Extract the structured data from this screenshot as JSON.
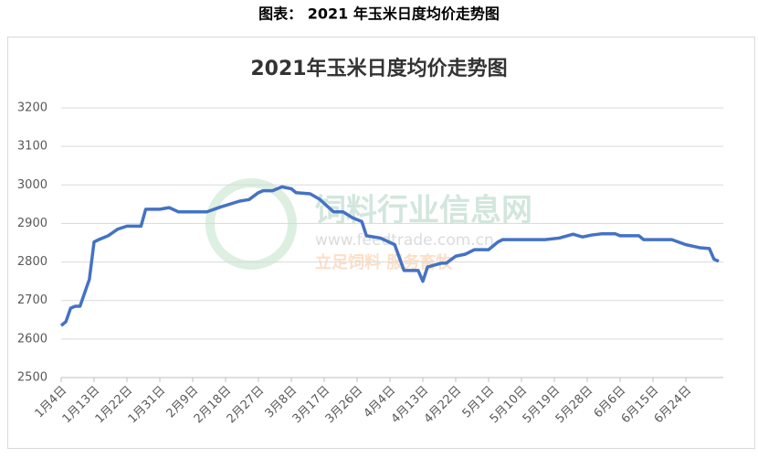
{
  "caption": "图表：  2021 年玉米日度均价走势图",
  "watermark": {
    "name": "饲料行业信息网",
    "url": "www.feedtrade.com.cn",
    "slogan": "立足饲料  服务畜牧"
  },
  "chart_data": {
    "type": "line",
    "title": "2021年玉米日度均价走势图",
    "x": [
      0,
      1,
      2,
      3,
      4,
      6,
      7,
      8,
      10,
      12,
      14,
      15,
      17,
      18,
      21,
      23,
      25,
      31,
      34,
      38,
      40,
      42,
      43,
      45,
      47,
      49,
      50,
      53,
      55,
      58,
      60,
      62,
      64,
      65,
      68,
      71,
      73,
      76,
      77,
      78,
      81,
      82,
      84,
      86,
      88,
      91,
      93,
      94,
      103,
      106,
      109,
      111,
      113,
      115,
      118,
      119,
      123,
      124,
      130,
      133,
      136,
      138,
      139,
      140
    ],
    "series": [
      {
        "name": "玉米日度均价",
        "color": "#4472c4",
        "values": [
          2635,
          2645,
          2680,
          2685,
          2685,
          2755,
          2852,
          2858,
          2868,
          2885,
          2893,
          2893,
          2893,
          2937,
          2937,
          2941,
          2930,
          2930,
          2943,
          2958,
          2962,
          2980,
          2985,
          2985,
          2995,
          2990,
          2980,
          2977,
          2963,
          2930,
          2930,
          2915,
          2905,
          2868,
          2862,
          2845,
          2778,
          2778,
          2750,
          2787,
          2797,
          2797,
          2815,
          2820,
          2832,
          2832,
          2852,
          2858,
          2858,
          2862,
          2872,
          2865,
          2870,
          2873,
          2873,
          2868,
          2868,
          2858,
          2858,
          2845,
          2837,
          2835,
          2807,
          2802
        ]
      }
    ],
    "xlim": [
      0,
      140
    ],
    "xticks": [
      {
        "value": 0,
        "label": "1月4日"
      },
      {
        "value": 7,
        "label": "1月13日"
      },
      {
        "value": 14,
        "label": "1月22日"
      },
      {
        "value": 21,
        "label": "1月31日"
      },
      {
        "value": 28,
        "label": "2月9日"
      },
      {
        "value": 35,
        "label": "2月18日"
      },
      {
        "value": 42,
        "label": "2月27日"
      },
      {
        "value": 49,
        "label": "3月8日"
      },
      {
        "value": 56,
        "label": "3月17日"
      },
      {
        "value": 63,
        "label": "3月26日"
      },
      {
        "value": 70,
        "label": "4月4日"
      },
      {
        "value": 77,
        "label": "4月13日"
      },
      {
        "value": 84,
        "label": "4月22日"
      },
      {
        "value": 91,
        "label": "5月1日"
      },
      {
        "value": 98,
        "label": "5月10日"
      },
      {
        "value": 105,
        "label": "5月19日"
      },
      {
        "value": 112,
        "label": "5月28日"
      },
      {
        "value": 119,
        "label": "6月6日"
      },
      {
        "value": 126,
        "label": "6月15日"
      },
      {
        "value": 133,
        "label": "6月24日"
      }
    ],
    "ylim": [
      2500,
      3200
    ],
    "yticks": [
      2500,
      2600,
      2700,
      2800,
      2900,
      3000,
      3100,
      3200
    ],
    "grid": true
  }
}
